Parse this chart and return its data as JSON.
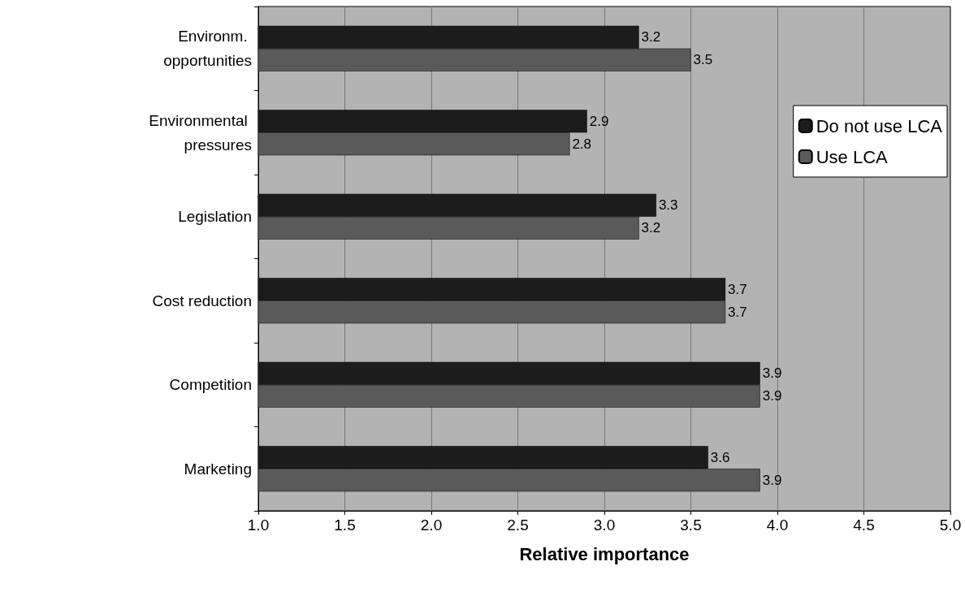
{
  "chart_data": {
    "type": "bar",
    "orientation": "horizontal",
    "xlabel": "Relative importance",
    "categories": [
      "Environm. opportunities",
      "Environmental pressures",
      "Legislation",
      "Cost reduction",
      "Competition",
      "Marketing"
    ],
    "series": [
      {
        "name": "Do not use LCA",
        "color": "#1c1c1c",
        "values": [
          3.2,
          2.9,
          3.3,
          3.7,
          3.9,
          3.6
        ]
      },
      {
        "name": "Use LCA",
        "color": "#5a5a5a",
        "values": [
          3.5,
          2.8,
          3.2,
          3.7,
          3.9,
          3.9
        ]
      }
    ],
    "xlim": [
      1,
      5
    ],
    "xticks": [
      {
        "value": 1,
        "label": "1.0"
      },
      {
        "value": 1.5,
        "label": "1.5"
      },
      {
        "value": 2,
        "label": "2.0"
      },
      {
        "value": 2.5,
        "label": "2.5"
      },
      {
        "value": 3,
        "label": "3.0"
      },
      {
        "value": 3.5,
        "label": "3.5"
      },
      {
        "value": 4,
        "label": "4.0"
      },
      {
        "value": 4.5,
        "label": "4.5"
      },
      {
        "value": 5,
        "label": "5.0"
      }
    ],
    "data_labels": true,
    "grid": "x",
    "legend": "top right"
  }
}
